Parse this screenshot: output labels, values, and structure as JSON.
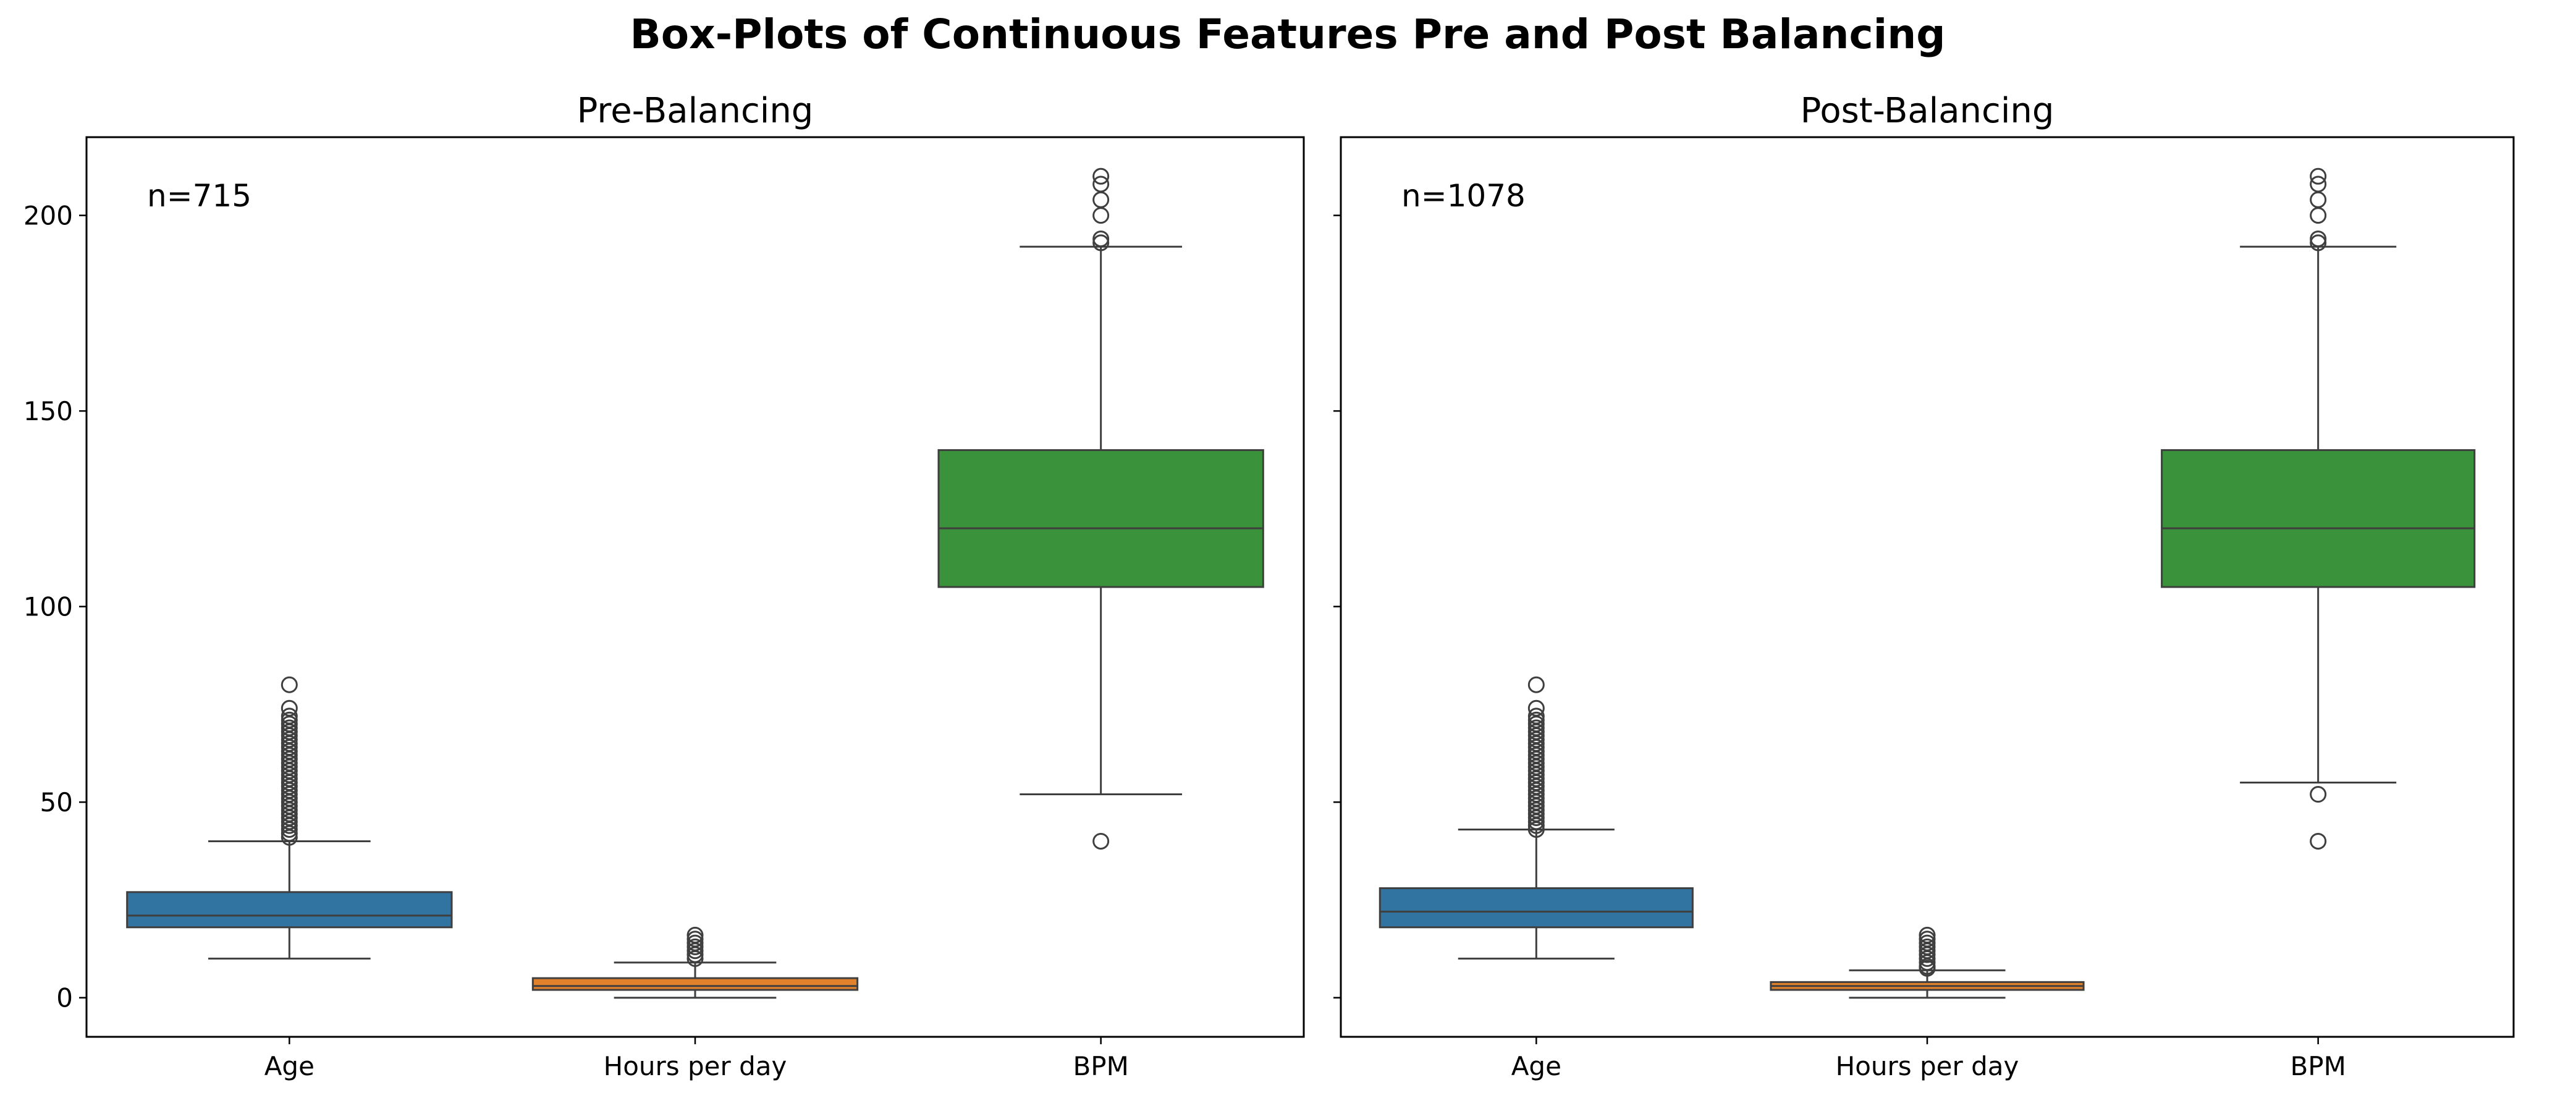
{
  "title": "Box-Plots of Continuous Features Pre and Post Balancing",
  "chart_data": [
    {
      "type": "box",
      "title": "Pre-Balancing",
      "annotation": "n=715",
      "categories": [
        "Age",
        "Hours per day",
        "BPM"
      ],
      "colors": [
        "#3274a1",
        "#e1812c",
        "#3a923a"
      ],
      "ylim": [
        -10,
        220
      ],
      "yticks": [
        0,
        50,
        100,
        150,
        200
      ],
      "ytick_labels": true,
      "boxes": [
        {
          "name": "Age",
          "whislo": 10,
          "q1": 18,
          "med": 21,
          "q3": 27,
          "whishi": 40,
          "fliers": [
            41,
            42,
            43,
            44,
            45,
            46,
            47,
            48,
            49,
            50,
            51,
            52,
            53,
            54,
            55,
            56,
            57,
            58,
            59,
            60,
            61,
            62,
            63,
            64,
            65,
            66,
            67,
            68,
            69,
            70,
            71,
            72,
            74,
            80
          ]
        },
        {
          "name": "Hours per day",
          "whislo": 0,
          "q1": 2,
          "med": 3,
          "q3": 5,
          "whishi": 9,
          "fliers": [
            10,
            11,
            12,
            13,
            14,
            15,
            16
          ]
        },
        {
          "name": "BPM",
          "whislo": 52,
          "q1": 105,
          "med": 120,
          "q3": 140,
          "whishi": 192,
          "fliers": [
            40,
            193,
            194,
            200,
            204,
            208,
            210
          ]
        }
      ]
    },
    {
      "type": "box",
      "title": "Post-Balancing",
      "annotation": "n=1078",
      "categories": [
        "Age",
        "Hours per day",
        "BPM"
      ],
      "colors": [
        "#3274a1",
        "#e1812c",
        "#3a923a"
      ],
      "ylim": [
        -10,
        220
      ],
      "yticks": [
        0,
        50,
        100,
        150,
        200
      ],
      "ytick_labels": false,
      "boxes": [
        {
          "name": "Age",
          "whislo": 10,
          "q1": 18,
          "med": 22,
          "q3": 28,
          "whishi": 43,
          "fliers": [
            43,
            44,
            45,
            46,
            47,
            48,
            49,
            50,
            51,
            52,
            53,
            54,
            55,
            56,
            57,
            58,
            59,
            60,
            61,
            62,
            63,
            64,
            65,
            66,
            67,
            68,
            69,
            70,
            71,
            72,
            74,
            80
          ]
        },
        {
          "name": "Hours per day",
          "whislo": 0,
          "q1": 2,
          "med": 3,
          "q3": 4,
          "whishi": 7,
          "fliers": [
            7.5,
            8,
            9,
            10,
            11,
            12,
            13,
            14,
            15,
            16
          ]
        },
        {
          "name": "BPM",
          "whislo": 55,
          "q1": 105,
          "med": 120,
          "q3": 140,
          "whishi": 192,
          "fliers": [
            40,
            52,
            193,
            194,
            200,
            204,
            208,
            210
          ]
        }
      ]
    }
  ]
}
